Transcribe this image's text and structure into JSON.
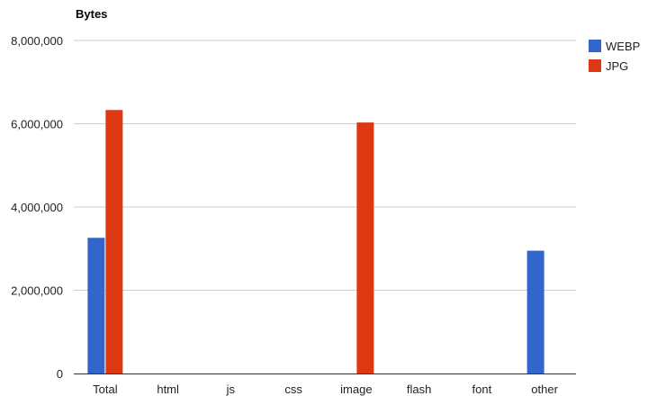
{
  "chart_data": {
    "type": "bar",
    "title": "Bytes",
    "xlabel": "",
    "ylabel": "",
    "categories": [
      "Total",
      "html",
      "js",
      "css",
      "image",
      "flash",
      "font",
      "other"
    ],
    "series": [
      {
        "name": "WEBP",
        "color": "#3366cc",
        "values": [
          3260000,
          0,
          0,
          0,
          0,
          0,
          0,
          2950000
        ]
      },
      {
        "name": "JPG",
        "color": "#dc3912",
        "values": [
          6330000,
          0,
          0,
          0,
          6030000,
          0,
          0,
          0
        ]
      }
    ],
    "ylim": [
      0,
      8000000
    ],
    "yticks": [
      0,
      2000000,
      4000000,
      6000000,
      8000000
    ],
    "ytick_labels": [
      "0",
      "2,000,000",
      "4,000,000",
      "6,000,000",
      "8,000,000"
    ],
    "grid": true,
    "legend_position": "right"
  }
}
